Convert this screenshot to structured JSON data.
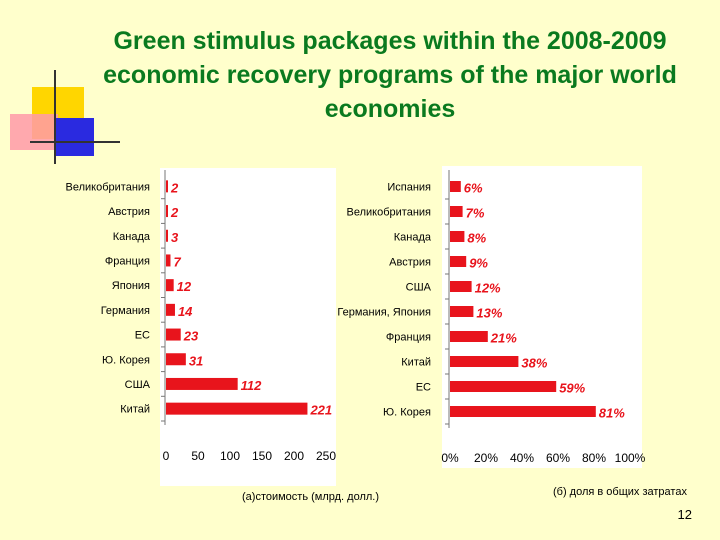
{
  "slide": {
    "title": "Green stimulus packages within the 2008-2009 economic recovery programs of the major world economies",
    "page_number": "12",
    "colors": {
      "title": "#0a7a1f",
      "bar": "#e8141c",
      "background": "#ffffcc"
    }
  },
  "chart_data": [
    {
      "type": "bar",
      "orientation": "horizontal",
      "categories": [
        "Великобритания",
        "Австрия",
        "Канада",
        "Франция",
        "Япония",
        "Германия",
        "ЕС",
        "Ю. Корея",
        "США",
        "Китай"
      ],
      "values": [
        2,
        2,
        3,
        7,
        12,
        14,
        23,
        31,
        112,
        221
      ],
      "data_labels": [
        "2",
        "2",
        "3",
        "7",
        "12",
        "14",
        "23",
        "31",
        "112",
        "221"
      ],
      "xlim": [
        0,
        250
      ],
      "ticks": [
        "0",
        "50",
        "100",
        "150",
        "200",
        "250"
      ],
      "xlabel": "(а)стоимость  (млрд. долл.)",
      "color": "#e8141c"
    },
    {
      "type": "bar",
      "orientation": "horizontal",
      "categories": [
        "Испания",
        "Великобритания",
        "Канада",
        "Австрия",
        "США",
        "Германия, Япония",
        "Франция",
        "Китай",
        "ЕС",
        "Ю. Корея"
      ],
      "values": [
        6,
        7,
        8,
        9,
        12,
        13,
        21,
        38,
        59,
        81
      ],
      "data_labels": [
        "6%",
        "7%",
        "8%",
        "9%",
        "12%",
        "13%",
        "21%",
        "38%",
        "59%",
        "81%"
      ],
      "xlim": [
        0,
        100
      ],
      "ticks": [
        "0%",
        "20%",
        "40%",
        "60%",
        "80%",
        "100%"
      ],
      "xlabel": "(б) доля в общих затратах",
      "color": "#e8141c"
    }
  ]
}
